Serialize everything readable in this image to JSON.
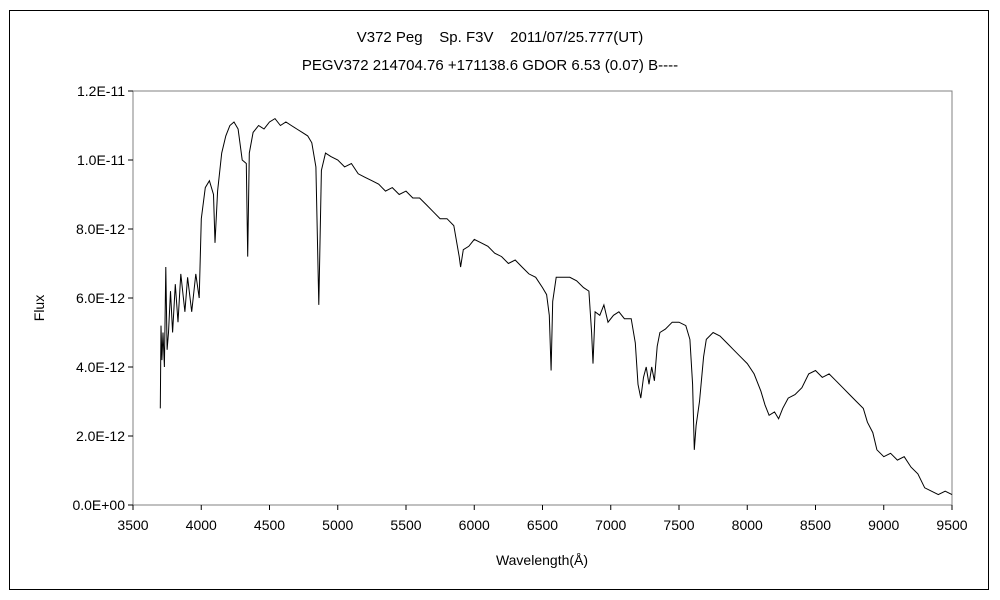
{
  "chart_data": {
    "type": "line",
    "title": "V372 Peg    Sp. F3V    2011/07/25.777(UT)",
    "subtitle": "PEGV372 214704.76 +171138.6 GDOR 6.53 (0.07) B----",
    "xlabel": "Wavelength(Å)",
    "ylabel": "Flux",
    "xlim": [
      3500,
      9500
    ],
    "ylim": [
      0,
      1.2e-11
    ],
    "grid": false,
    "xticks": [
      3500,
      4000,
      4500,
      5000,
      5500,
      6000,
      6500,
      7000,
      7500,
      8000,
      8500,
      9000,
      9500
    ],
    "xtick_labels": [
      "3500",
      "4000",
      "4500",
      "5000",
      "5500",
      "6000",
      "6500",
      "7000",
      "7500",
      "8000",
      "8500",
      "9000",
      "9500"
    ],
    "yticks": [
      0,
      2e-12,
      4e-12,
      6e-12,
      8e-12,
      1e-11,
      1.2e-11
    ],
    "ytick_labels": [
      "0.0E+00",
      "2.0E-12",
      "4.0E-12",
      "6.0E-12",
      "8.0E-12",
      "1.0E-11",
      "1.2E-11"
    ],
    "series": [
      {
        "color": "#000000",
        "points": [
          [
            3700,
            2.8e-12
          ],
          [
            3705,
            5.2e-12
          ],
          [
            3712,
            4.2e-12
          ],
          [
            3720,
            5e-12
          ],
          [
            3730,
            4e-12
          ],
          [
            3740,
            6.9e-12
          ],
          [
            3750,
            4.5e-12
          ],
          [
            3760,
            5e-12
          ],
          [
            3775,
            6.2e-12
          ],
          [
            3790,
            5e-12
          ],
          [
            3810,
            6.4e-12
          ],
          [
            3830,
            5.3e-12
          ],
          [
            3850,
            6.7e-12
          ],
          [
            3880,
            5.6e-12
          ],
          [
            3900,
            6.6e-12
          ],
          [
            3930,
            5.6e-12
          ],
          [
            3960,
            6.7e-12
          ],
          [
            3985,
            6e-12
          ],
          [
            4000,
            8.3e-12
          ],
          [
            4030,
            9.2e-12
          ],
          [
            4060,
            9.4e-12
          ],
          [
            4090,
            9e-12
          ],
          [
            4101,
            7.6e-12
          ],
          [
            4120,
            9.1e-12
          ],
          [
            4150,
            1.02e-11
          ],
          [
            4180,
            1.07e-11
          ],
          [
            4210,
            1.1e-11
          ],
          [
            4240,
            1.11e-11
          ],
          [
            4270,
            1.09e-11
          ],
          [
            4300,
            1e-11
          ],
          [
            4330,
            9.9e-12
          ],
          [
            4340,
            7.2e-12
          ],
          [
            4352,
            1.02e-11
          ],
          [
            4380,
            1.08e-11
          ],
          [
            4420,
            1.1e-11
          ],
          [
            4460,
            1.09e-11
          ],
          [
            4500,
            1.11e-11
          ],
          [
            4540,
            1.12e-11
          ],
          [
            4580,
            1.1e-11
          ],
          [
            4620,
            1.11e-11
          ],
          [
            4660,
            1.1e-11
          ],
          [
            4700,
            1.09e-11
          ],
          [
            4740,
            1.08e-11
          ],
          [
            4780,
            1.07e-11
          ],
          [
            4810,
            1.05e-11
          ],
          [
            4840,
            9.8e-12
          ],
          [
            4861,
            5.8e-12
          ],
          [
            4880,
            9.7e-12
          ],
          [
            4910,
            1.02e-11
          ],
          [
            4950,
            1.01e-11
          ],
          [
            5000,
            1e-11
          ],
          [
            5050,
            9.8e-12
          ],
          [
            5100,
            9.9e-12
          ],
          [
            5150,
            9.6e-12
          ],
          [
            5200,
            9.5e-12
          ],
          [
            5250,
            9.4e-12
          ],
          [
            5300,
            9.3e-12
          ],
          [
            5350,
            9.1e-12
          ],
          [
            5400,
            9.2e-12
          ],
          [
            5450,
            9e-12
          ],
          [
            5500,
            9.1e-12
          ],
          [
            5550,
            8.9e-12
          ],
          [
            5600,
            8.9e-12
          ],
          [
            5650,
            8.7e-12
          ],
          [
            5700,
            8.5e-12
          ],
          [
            5750,
            8.3e-12
          ],
          [
            5800,
            8.3e-12
          ],
          [
            5850,
            8.1e-12
          ],
          [
            5890,
            7.2e-12
          ],
          [
            5900,
            6.9e-12
          ],
          [
            5920,
            7.4e-12
          ],
          [
            5960,
            7.5e-12
          ],
          [
            6000,
            7.7e-12
          ],
          [
            6050,
            7.6e-12
          ],
          [
            6100,
            7.5e-12
          ],
          [
            6150,
            7.3e-12
          ],
          [
            6200,
            7.2e-12
          ],
          [
            6250,
            7e-12
          ],
          [
            6300,
            7.1e-12
          ],
          [
            6350,
            6.9e-12
          ],
          [
            6400,
            6.7e-12
          ],
          [
            6450,
            6.6e-12
          ],
          [
            6500,
            6.3e-12
          ],
          [
            6530,
            6.1e-12
          ],
          [
            6550,
            5.5e-12
          ],
          [
            6563,
            3.9e-12
          ],
          [
            6575,
            5.9e-12
          ],
          [
            6600,
            6.6e-12
          ],
          [
            6650,
            6.6e-12
          ],
          [
            6700,
            6.6e-12
          ],
          [
            6750,
            6.5e-12
          ],
          [
            6800,
            6.3e-12
          ],
          [
            6840,
            6.2e-12
          ],
          [
            6860,
            5e-12
          ],
          [
            6870,
            4.1e-12
          ],
          [
            6885,
            5.6e-12
          ],
          [
            6920,
            5.5e-12
          ],
          [
            6950,
            5.8e-12
          ],
          [
            6980,
            5.3e-12
          ],
          [
            7020,
            5.5e-12
          ],
          [
            7060,
            5.6e-12
          ],
          [
            7100,
            5.4e-12
          ],
          [
            7150,
            5.4e-12
          ],
          [
            7180,
            4.7e-12
          ],
          [
            7200,
            3.5e-12
          ],
          [
            7220,
            3.1e-12
          ],
          [
            7240,
            3.7e-12
          ],
          [
            7260,
            4e-12
          ],
          [
            7280,
            3.5e-12
          ],
          [
            7300,
            4e-12
          ],
          [
            7320,
            3.6e-12
          ],
          [
            7340,
            4.6e-12
          ],
          [
            7360,
            5e-12
          ],
          [
            7400,
            5.1e-12
          ],
          [
            7450,
            5.3e-12
          ],
          [
            7500,
            5.3e-12
          ],
          [
            7550,
            5.2e-12
          ],
          [
            7580,
            4.8e-12
          ],
          [
            7600,
            3.5e-12
          ],
          [
            7612,
            1.6e-12
          ],
          [
            7625,
            2.3e-12
          ],
          [
            7650,
            3e-12
          ],
          [
            7680,
            4.3e-12
          ],
          [
            7700,
            4.8e-12
          ],
          [
            7750,
            5e-12
          ],
          [
            7800,
            4.9e-12
          ],
          [
            7850,
            4.7e-12
          ],
          [
            7900,
            4.5e-12
          ],
          [
            7950,
            4.3e-12
          ],
          [
            8000,
            4.1e-12
          ],
          [
            8050,
            3.8e-12
          ],
          [
            8100,
            3.3e-12
          ],
          [
            8130,
            2.9e-12
          ],
          [
            8160,
            2.6e-12
          ],
          [
            8200,
            2.7e-12
          ],
          [
            8230,
            2.5e-12
          ],
          [
            8260,
            2.8e-12
          ],
          [
            8300,
            3.1e-12
          ],
          [
            8350,
            3.2e-12
          ],
          [
            8400,
            3.4e-12
          ],
          [
            8450,
            3.8e-12
          ],
          [
            8500,
            3.9e-12
          ],
          [
            8550,
            3.7e-12
          ],
          [
            8600,
            3.8e-12
          ],
          [
            8650,
            3.6e-12
          ],
          [
            8700,
            3.4e-12
          ],
          [
            8750,
            3.2e-12
          ],
          [
            8800,
            3e-12
          ],
          [
            8850,
            2.8e-12
          ],
          [
            8880,
            2.4e-12
          ],
          [
            8920,
            2.1e-12
          ],
          [
            8950,
            1.6e-12
          ],
          [
            9000,
            1.4e-12
          ],
          [
            9050,
            1.5e-12
          ],
          [
            9100,
            1.3e-12
          ],
          [
            9150,
            1.4e-12
          ],
          [
            9200,
            1.1e-12
          ],
          [
            9250,
            9e-13
          ],
          [
            9300,
            5e-13
          ],
          [
            9350,
            4e-13
          ],
          [
            9400,
            3e-13
          ],
          [
            9450,
            4e-13
          ],
          [
            9500,
            3e-13
          ]
        ]
      }
    ]
  }
}
